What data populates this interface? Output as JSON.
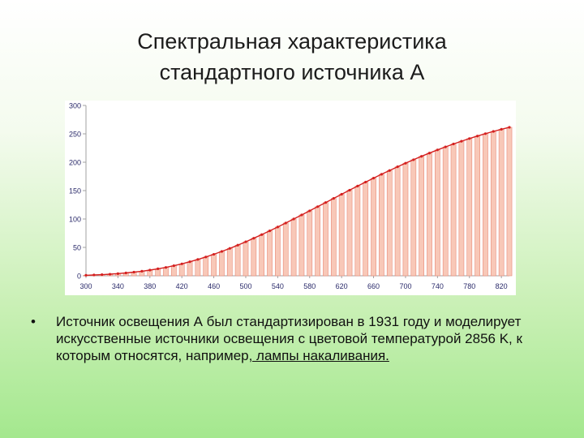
{
  "slide": {
    "title_line1": "Спектральная характеристика",
    "title_line2": "стандартного источника А"
  },
  "bullet": {
    "marker": "•",
    "text": "Источник освещения А был стандартизирован в 1931 году и моделирует искусственные источники освещения с цветовой температурой 2856 K, к которым относятся, например",
    "link_text": ", лампы накаливания."
  },
  "chart_data": {
    "type": "bar",
    "xlim": [
      300,
      830
    ],
    "ylim": [
      0,
      300
    ],
    "x_ticks": [
      300,
      340,
      380,
      420,
      460,
      500,
      540,
      580,
      620,
      660,
      700,
      740,
      780,
      820
    ],
    "y_ticks": [
      0,
      50,
      100,
      150,
      200,
      250,
      300
    ],
    "grid": false,
    "x": [
      300,
      310,
      320,
      330,
      340,
      350,
      360,
      370,
      380,
      390,
      400,
      410,
      420,
      430,
      440,
      450,
      460,
      470,
      480,
      490,
      500,
      510,
      520,
      530,
      540,
      550,
      560,
      570,
      580,
      590,
      600,
      610,
      620,
      630,
      640,
      650,
      660,
      670,
      680,
      690,
      700,
      710,
      720,
      730,
      740,
      750,
      760,
      770,
      780,
      790,
      800,
      810,
      820,
      830
    ],
    "values": [
      0.9,
      1.4,
      2.0,
      2.8,
      3.8,
      5.0,
      6.4,
      8.0,
      10.0,
      12.3,
      14.7,
      17.7,
      21.0,
      24.7,
      28.7,
      33.1,
      37.8,
      42.9,
      48.2,
      53.9,
      59.9,
      66.1,
      72.5,
      79.1,
      85.9,
      92.9,
      100.0,
      107.2,
      114.4,
      121.7,
      129.0,
      136.3,
      143.6,
      150.8,
      158.0,
      165.0,
      172.0,
      178.8,
      185.4,
      192.0,
      198.3,
      204.4,
      210.4,
      216.1,
      221.7,
      227.0,
      232.1,
      237.0,
      241.7,
      246.1,
      250.3,
      254.3,
      258.0,
      261.5
    ],
    "bar_color": "#f8c8b8",
    "bar_stroke": "#e88a78",
    "line_color": "#d42020",
    "tick_label_color": "#2a2a6a",
    "axis_color": "#a0a0a0"
  }
}
